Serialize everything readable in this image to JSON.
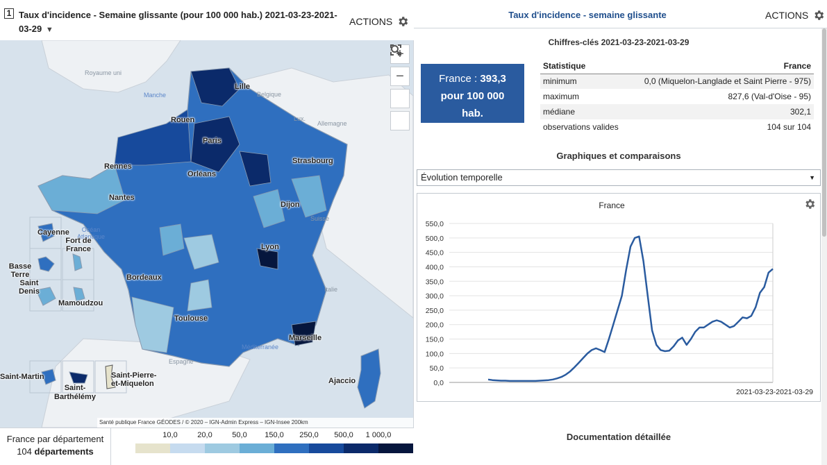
{
  "left": {
    "map_number": "1",
    "title": "Taux d'incidence - Semaine glissante (pour 100 000 hab.)  2021-03-23-2021-03-29",
    "caret": "▼",
    "actions_label": "ACTIONS",
    "controls": {
      "zoom_in": "+",
      "zoom_out": "−"
    },
    "attribution": "Santé publique France GÉODES / © 2020 – IGN-Admin Express – IGN-Insee  200km",
    "country_labels": [
      "Royaume uni",
      "Belgique",
      "Lux.",
      "Allemagne",
      "Suisse",
      "Italie",
      "Espagne"
    ],
    "sea_labels": [
      "Manche",
      "Océan Atlantique",
      "Méditerranée"
    ],
    "city_labels": [
      "Lille",
      "Rouen",
      "Paris",
      "Rennes",
      "Orléans",
      "Strasbourg",
      "Nantes",
      "Dijon",
      "Lyon",
      "Bordeaux",
      "Toulouse",
      "Marseille",
      "Ajaccio"
    ],
    "overseas_labels": [
      "Cayenne",
      "Fort de France",
      "Basse Terre",
      "Saint Denis",
      "Mamoudzou",
      "Saint-Martin",
      "Saint-Barthélémy",
      "Saint-Pierre-et-Miquelon"
    ],
    "legend": {
      "caption": "France par département",
      "count_prefix": "104",
      "count_suffix": "départements",
      "ticks": [
        "10,0",
        "20,0",
        "50,0",
        "150,0",
        "250,0",
        "500,0",
        "1 000,0"
      ],
      "colors": [
        "#e6e3cc",
        "#c6dbef",
        "#9ecae1",
        "#6baed6",
        "#2f6fbf",
        "#174a9c",
        "#0b2a6a",
        "#06163d"
      ]
    }
  },
  "right": {
    "title": "Taux d'incidence - semaine glissante",
    "actions_label": "ACTIONS",
    "key_figures_title": "Chiffres-clés 2021-03-23-2021-03-29",
    "kpi": {
      "prefix": "France : ",
      "value": "393,3",
      "line2": "pour 100 000",
      "line3": "hab."
    },
    "stats_header": {
      "col1": "Statistique",
      "col2": "France"
    },
    "stats_rows": [
      {
        "label": "minimum",
        "value": "0,0 (Miquelon-Langlade et Saint Pierre - 975)"
      },
      {
        "label": "maximum",
        "value": "827,6 (Val-d'Oise - 95)"
      },
      {
        "label": "médiane",
        "value": "302,1"
      },
      {
        "label": "observations valides",
        "value": "104 sur 104"
      }
    ],
    "charts_title": "Graphiques et comparaisons",
    "select_value": "Évolution temporelle",
    "chart_title": "France",
    "doc_title": "Documentation détaillée"
  },
  "chart_data": {
    "type": "line",
    "title": "France",
    "xlabel": "2021-03-23-2021-03-29",
    "ylabel": "",
    "ylim": [
      0,
      550
    ],
    "yticks": [
      "0,0",
      "50,0",
      "100,0",
      "150,0",
      "200,0",
      "250,0",
      "300,0",
      "350,0",
      "400,0",
      "450,0",
      "500,0",
      "550,0"
    ],
    "grid": true,
    "series": [
      {
        "color": "#2a5b9f",
        "values": [
          10,
          8,
          7,
          6,
          6,
          5,
          5,
          5,
          5,
          5,
          5,
          5,
          6,
          7,
          8,
          10,
          14,
          19,
          27,
          38,
          52,
          68,
          84,
          100,
          112,
          118,
          112,
          105,
          150,
          200,
          250,
          300,
          390,
          470,
          500,
          505,
          420,
          300,
          180,
          130,
          112,
          108,
          110,
          125,
          145,
          155,
          130,
          150,
          175,
          190,
          190,
          200,
          210,
          215,
          210,
          200,
          190,
          195,
          210,
          225,
          222,
          230,
          260,
          310,
          330,
          380,
          393
        ]
      }
    ]
  }
}
